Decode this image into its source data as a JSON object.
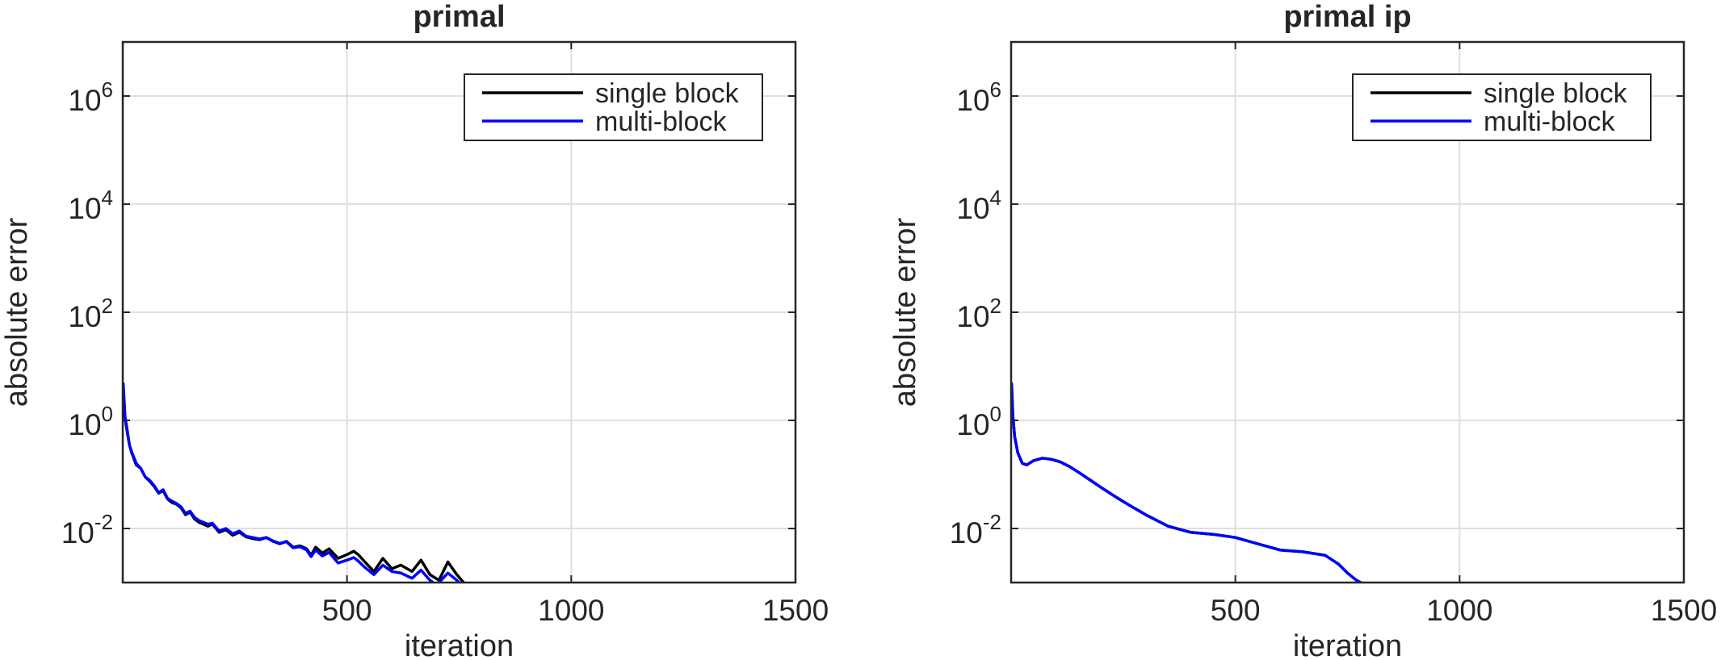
{
  "chart_data": [
    {
      "type": "line",
      "title": "primal",
      "xlabel": "iteration",
      "ylabel": "absolute error",
      "xlim": [
        0,
        1500
      ],
      "ylim_log10": [
        -3,
        7
      ],
      "yscale": "log",
      "grid": true,
      "legend_position": "top-right",
      "x_ticks": [
        500,
        1000,
        1500
      ],
      "x_tick_labels": [
        "500",
        "1000",
        "1500"
      ],
      "y_ticks_log10": [
        -2,
        0,
        2,
        4,
        6
      ],
      "y_tick_labels": [
        {
          "base": "10",
          "exp": "-2"
        },
        {
          "base": "10",
          "exp": "0"
        },
        {
          "base": "10",
          "exp": "2"
        },
        {
          "base": "10",
          "exp": "4"
        },
        {
          "base": "10",
          "exp": "6"
        }
      ],
      "series": [
        {
          "name": "single block",
          "color": "#000000",
          "x": [
            1,
            5,
            10,
            15,
            20,
            30,
            40,
            50,
            60,
            70,
            80,
            90,
            100,
            110,
            120,
            130,
            140,
            150,
            160,
            170,
            180,
            190,
            200,
            215,
            230,
            245,
            260,
            275,
            290,
            305,
            320,
            335,
            350,
            365,
            380,
            395,
            410,
            420,
            430,
            445,
            460,
            480,
            500,
            515,
            525,
            540,
            560,
            580,
            600,
            620,
            645,
            665,
            685,
            705,
            725,
            745,
            760
          ],
          "y": [
            3.5,
            1.1,
            0.6,
            0.35,
            0.25,
            0.15,
            0.13,
            0.09,
            0.075,
            0.06,
            0.045,
            0.05,
            0.035,
            0.03,
            0.028,
            0.024,
            0.018,
            0.02,
            0.015,
            0.013,
            0.012,
            0.011,
            0.012,
            0.0085,
            0.0095,
            0.0075,
            0.0085,
            0.007,
            0.0065,
            0.0062,
            0.0068,
            0.0058,
            0.0052,
            0.0058,
            0.0045,
            0.0048,
            0.0042,
            0.0032,
            0.0045,
            0.0035,
            0.0042,
            0.0028,
            0.0033,
            0.0038,
            0.0033,
            0.0024,
            0.0016,
            0.0028,
            0.0018,
            0.0021,
            0.0016,
            0.0026,
            0.0014,
            0.0011,
            0.0024,
            0.0014,
            0.001
          ]
        },
        {
          "name": "multi-block",
          "color": "#0000ff",
          "x": [
            1,
            5,
            10,
            15,
            20,
            30,
            40,
            50,
            60,
            70,
            80,
            90,
            100,
            110,
            120,
            130,
            140,
            150,
            160,
            170,
            180,
            190,
            200,
            215,
            230,
            245,
            260,
            275,
            290,
            305,
            320,
            335,
            350,
            365,
            380,
            395,
            410,
            420,
            430,
            445,
            460,
            480,
            500,
            515,
            525,
            540,
            560,
            580,
            600,
            620,
            645,
            665,
            685,
            700,
            725,
            745,
            755
          ],
          "y": [
            5,
            1.2,
            0.65,
            0.35,
            0.26,
            0.16,
            0.13,
            0.09,
            0.078,
            0.062,
            0.046,
            0.052,
            0.036,
            0.032,
            0.029,
            0.025,
            0.019,
            0.021,
            0.016,
            0.014,
            0.013,
            0.012,
            0.0125,
            0.009,
            0.01,
            0.008,
            0.009,
            0.0072,
            0.0068,
            0.0064,
            0.0068,
            0.0059,
            0.0053,
            0.0057,
            0.0044,
            0.0046,
            0.004,
            0.003,
            0.004,
            0.0031,
            0.0036,
            0.0023,
            0.0026,
            0.0029,
            0.0025,
            0.0019,
            0.0014,
            0.0021,
            0.0016,
            0.0015,
            0.0012,
            0.0017,
            0.0011,
            0.0009,
            0.0015,
            0.0011,
            0.0009
          ]
        }
      ]
    },
    {
      "type": "line",
      "title": "primal ip",
      "xlabel": "iteration",
      "ylabel": "absolute error",
      "xlim": [
        0,
        1500
      ],
      "ylim_log10": [
        -3,
        7
      ],
      "yscale": "log",
      "grid": true,
      "legend_position": "top-right",
      "x_ticks": [
        500,
        1000,
        1500
      ],
      "x_tick_labels": [
        "500",
        "1000",
        "1500"
      ],
      "y_ticks_log10": [
        -2,
        0,
        2,
        4,
        6
      ],
      "y_tick_labels": [
        {
          "base": "10",
          "exp": "-2"
        },
        {
          "base": "10",
          "exp": "0"
        },
        {
          "base": "10",
          "exp": "2"
        },
        {
          "base": "10",
          "exp": "4"
        },
        {
          "base": "10",
          "exp": "6"
        }
      ],
      "series": [
        {
          "name": "single block",
          "color": "#000000",
          "x": [
            1,
            4,
            8,
            15,
            25,
            35,
            50,
            70,
            90,
            110,
            130,
            150,
            175,
            200,
            230,
            260,
            300,
            350,
            400,
            450,
            500,
            550,
            600,
            650,
            700,
            730,
            750,
            770,
            785
          ],
          "y": [
            4.5,
            1.2,
            0.5,
            0.25,
            0.16,
            0.15,
            0.18,
            0.2,
            0.19,
            0.17,
            0.14,
            0.11,
            0.08,
            0.058,
            0.04,
            0.028,
            0.018,
            0.011,
            0.0085,
            0.0078,
            0.0068,
            0.0052,
            0.004,
            0.0037,
            0.0032,
            0.0022,
            0.0015,
            0.0011,
            0.00095
          ]
        },
        {
          "name": "multi-block",
          "color": "#0000ff",
          "x": [
            1,
            4,
            8,
            15,
            25,
            35,
            50,
            70,
            90,
            110,
            130,
            150,
            175,
            200,
            230,
            260,
            300,
            350,
            400,
            450,
            500,
            550,
            600,
            650,
            700,
            730,
            750,
            770,
            785
          ],
          "y": [
            5,
            1.2,
            0.5,
            0.25,
            0.16,
            0.15,
            0.18,
            0.2,
            0.19,
            0.17,
            0.14,
            0.11,
            0.08,
            0.058,
            0.04,
            0.028,
            0.018,
            0.011,
            0.0085,
            0.0078,
            0.0068,
            0.0052,
            0.004,
            0.0037,
            0.0032,
            0.0022,
            0.0015,
            0.0011,
            0.00095
          ]
        }
      ]
    }
  ]
}
